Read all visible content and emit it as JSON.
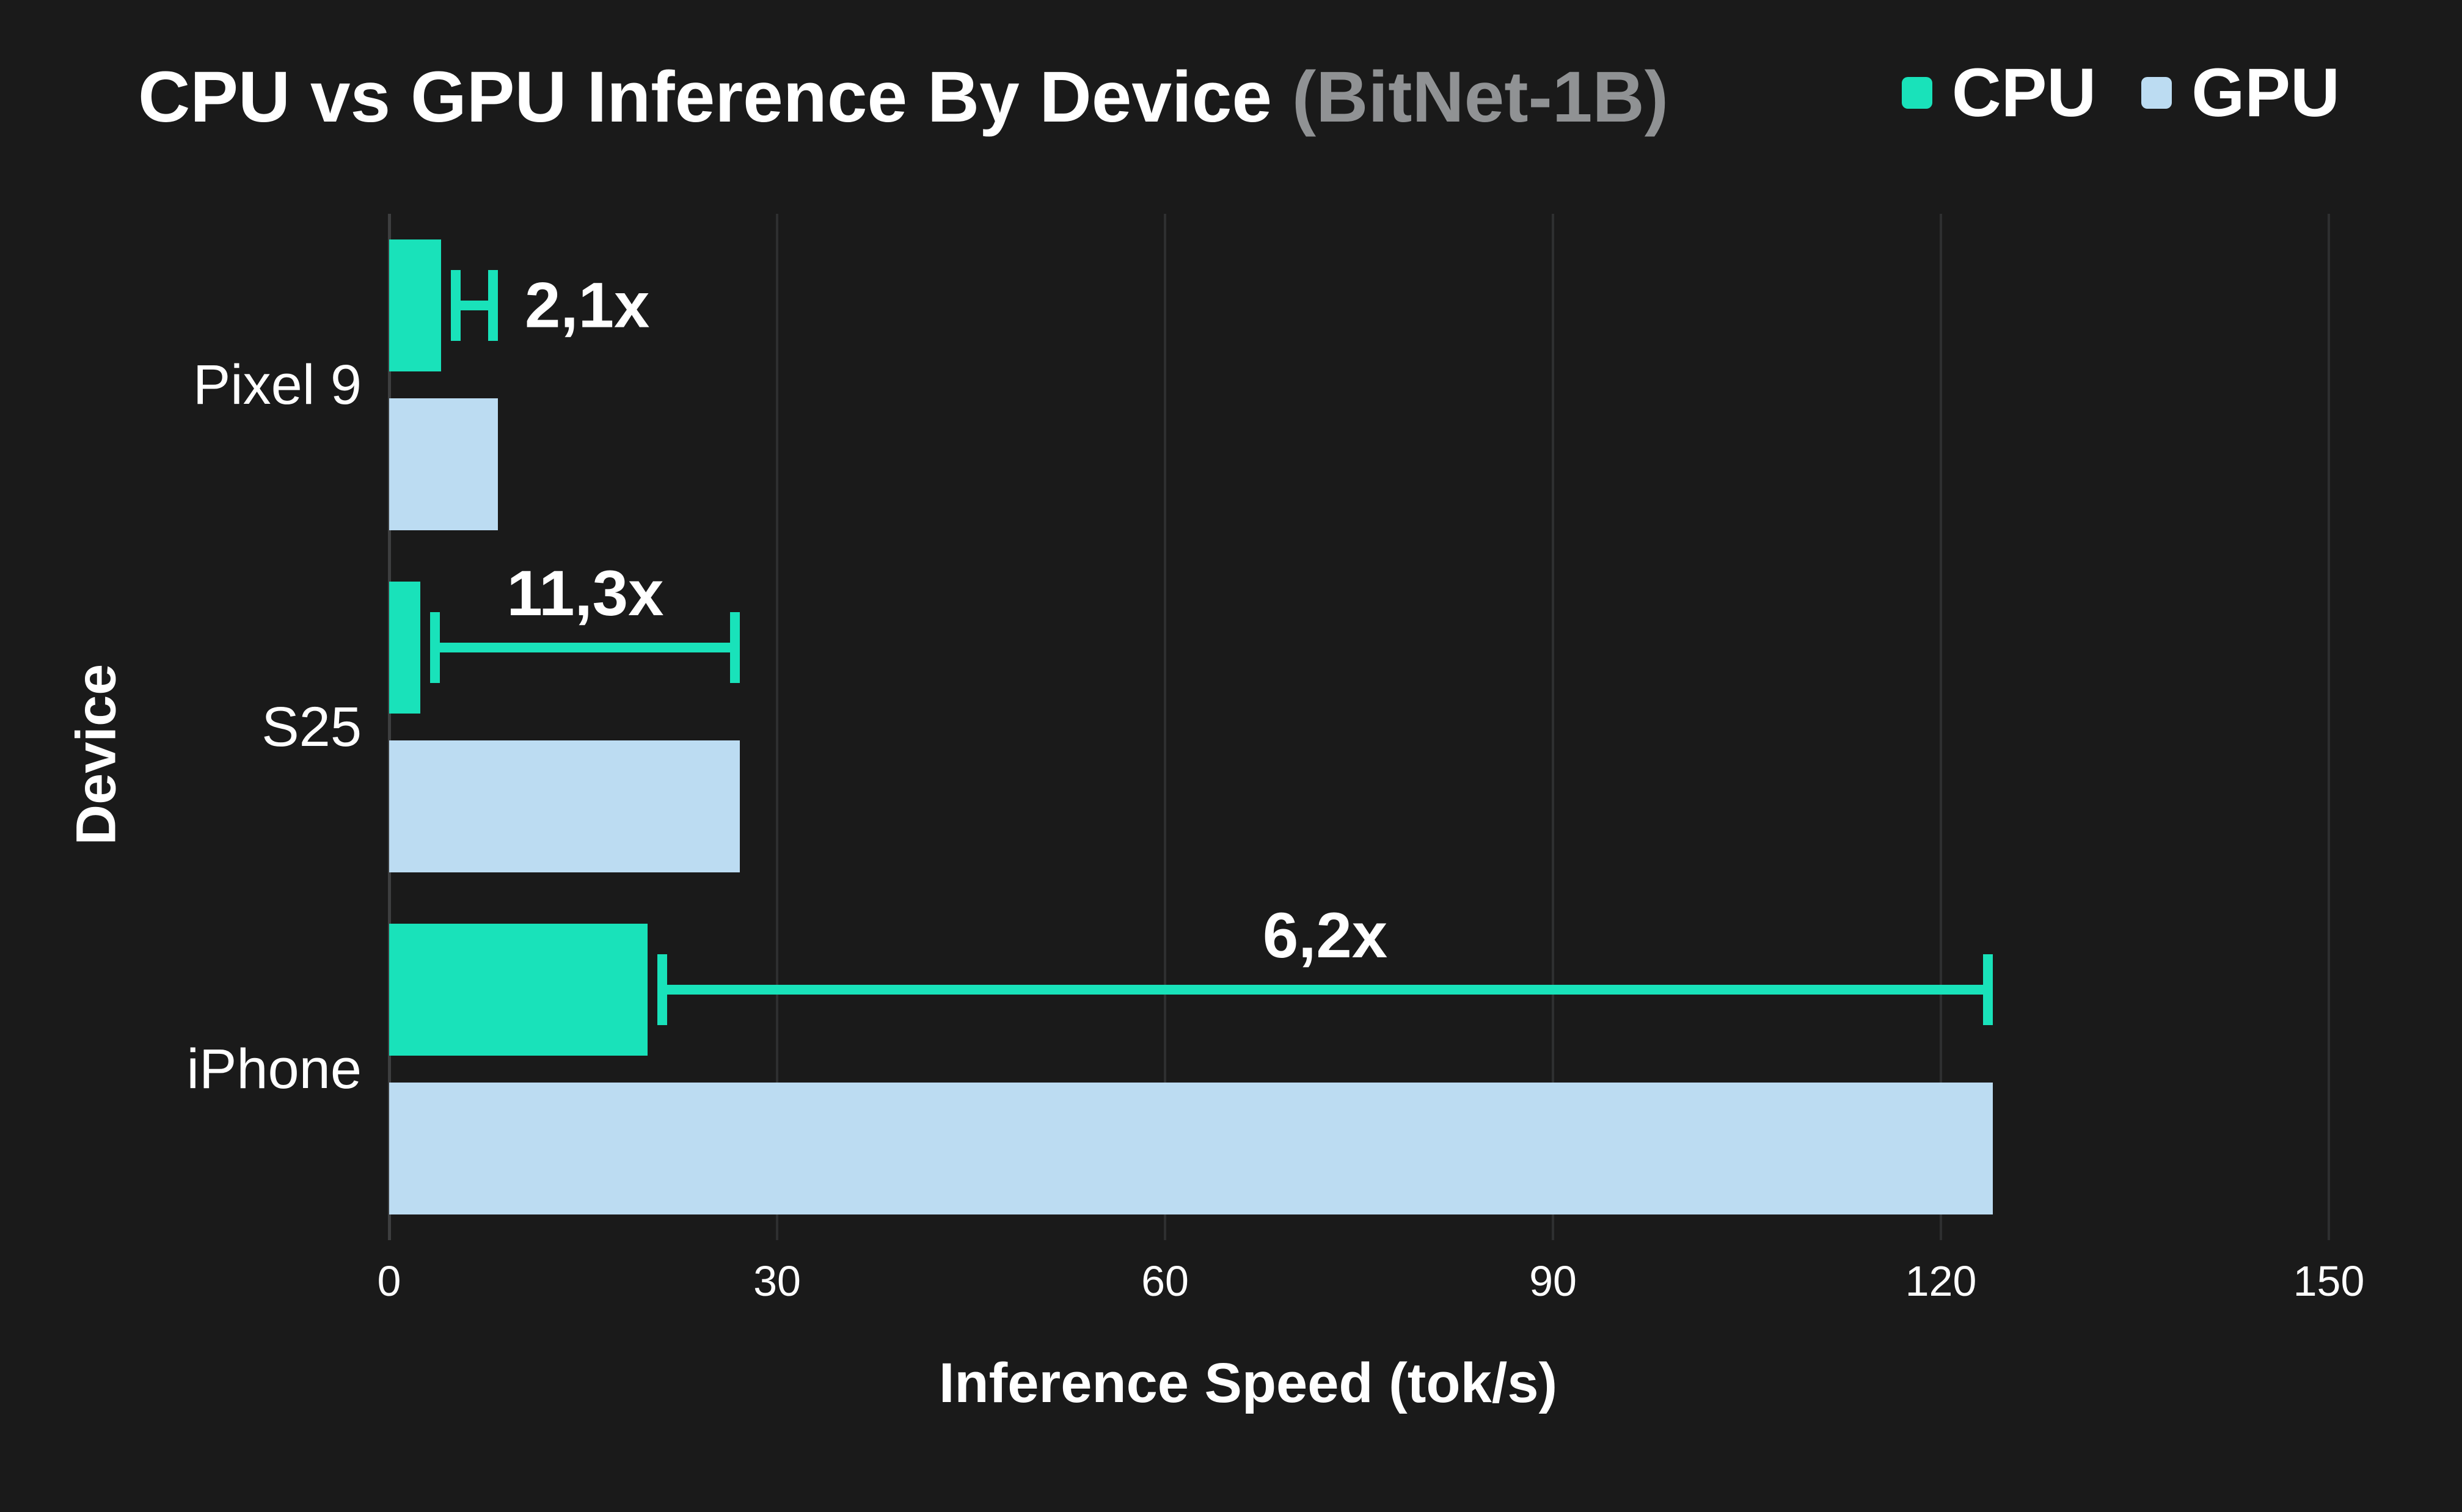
{
  "colors": {
    "background": "#1a1a1a",
    "grid_line": "#2e2f30",
    "zero_line": "#3d3e3f",
    "text": "#ffffff",
    "subtitle_text": "#909294",
    "cpu": "#19e2ba",
    "gpu": "#bcdcf2"
  },
  "chart_data": {
    "type": "bar",
    "orientation": "horizontal",
    "title": "CPU vs GPU Inference By Device",
    "subtitle": "(BitNet-1B)",
    "xlabel": "Inference Speed (tok/s)",
    "ylabel": "Device",
    "xlim": [
      0,
      150
    ],
    "xticks": [
      0,
      30,
      60,
      90,
      120,
      150
    ],
    "grid": "vertical-only",
    "legend_position": "top-right",
    "categories": [
      "Pixel 9",
      "S25",
      "iPhone"
    ],
    "series": [
      {
        "name": "CPU",
        "color": "#19e2ba",
        "values": [
          4.0,
          2.4,
          20.0
        ]
      },
      {
        "name": "GPU",
        "color": "#bcdcf2",
        "values": [
          8.4,
          27.1,
          124.0
        ]
      }
    ],
    "speedup_annotations": [
      {
        "device": "Pixel 9",
        "label": "2,1x",
        "placement": "right-of-line"
      },
      {
        "device": "S25",
        "label": "11,3x",
        "placement": "above-line"
      },
      {
        "device": "iPhone",
        "label": "6,2x",
        "placement": "above-line"
      }
    ]
  }
}
